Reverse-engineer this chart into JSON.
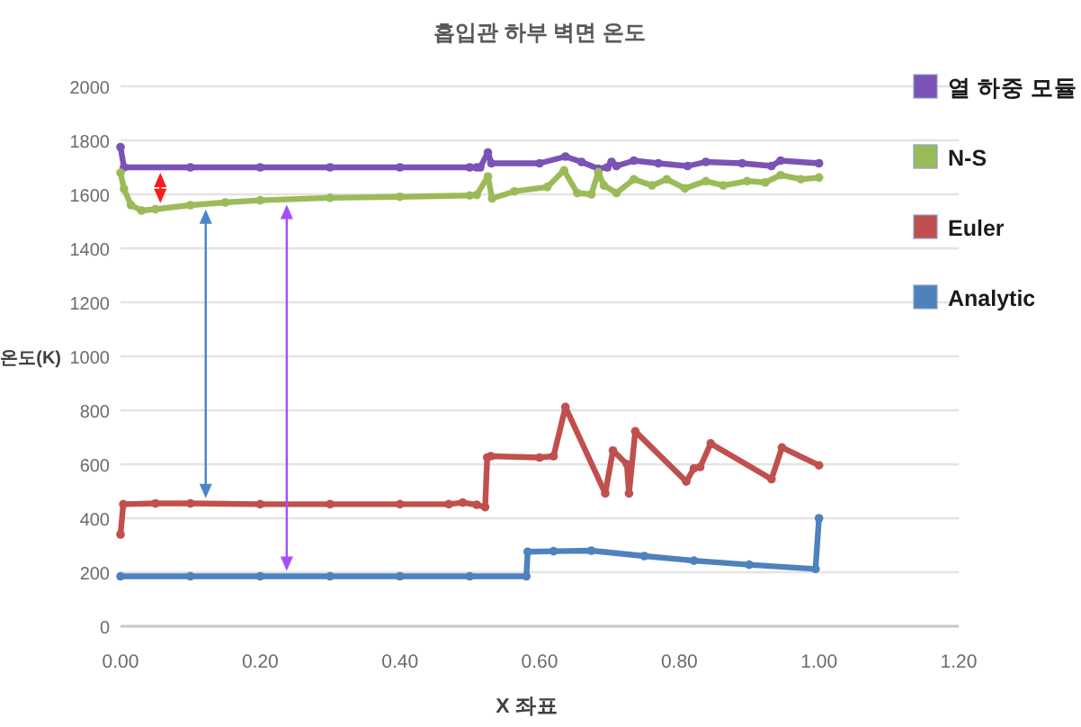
{
  "chart_data": {
    "type": "line",
    "title": "흡입관 하부 벽면 온도",
    "xlabel": "X 좌표",
    "ylabel": "온도(K)",
    "xlim": [
      0,
      1.2
    ],
    "xticks": [
      {
        "value": 0,
        "label": "0.00"
      },
      {
        "value": 0.2,
        "label": "0.20"
      },
      {
        "value": 0.4,
        "label": "0.40"
      },
      {
        "value": 0.6,
        "label": "0.60"
      },
      {
        "value": 0.8,
        "label": "0.80"
      },
      {
        "value": 1.0,
        "label": "1.00"
      },
      {
        "value": 1.2,
        "label": "1.20"
      }
    ],
    "ylim": [
      0,
      2000
    ],
    "yticks": [
      0,
      200,
      400,
      600,
      800,
      1000,
      1200,
      1400,
      1600,
      1800,
      2000
    ],
    "grid": "y",
    "legend": "right",
    "marker": "circle",
    "series": [
      {
        "name": "열 하중 모듈",
        "color": "#7b52b5",
        "x": [
          0,
          0.005,
          0.1,
          0.2,
          0.3,
          0.4,
          0.5,
          0.51,
          0.515,
          0.526,
          0.531,
          0.6,
          0.637,
          0.66,
          0.684,
          0.697,
          0.703,
          0.71,
          0.735,
          0.77,
          0.812,
          0.838,
          0.89,
          0.932,
          0.945,
          1.0
        ],
        "values": [
          1775,
          1700,
          1700,
          1700,
          1700,
          1700,
          1700,
          1700,
          1700,
          1755,
          1715,
          1715,
          1740,
          1720,
          1695,
          1700,
          1720,
          1705,
          1725,
          1715,
          1705,
          1720,
          1715,
          1705,
          1725,
          1715
        ]
      },
      {
        "name": "N-S",
        "color": "#9bbb59",
        "x": [
          0,
          0.005,
          0.015,
          0.03,
          0.05,
          0.1,
          0.15,
          0.2,
          0.3,
          0.4,
          0.5,
          0.51,
          0.526,
          0.532,
          0.564,
          0.611,
          0.635,
          0.654,
          0.674,
          0.684,
          0.692,
          0.71,
          0.735,
          0.761,
          0.782,
          0.808,
          0.838,
          0.863,
          0.897,
          0.923,
          0.945,
          0.974,
          1.0
        ],
        "values": [
          1680,
          1620,
          1560,
          1540,
          1545,
          1560,
          1570,
          1578,
          1587,
          1591,
          1596,
          1598,
          1666,
          1585,
          1611,
          1627,
          1689,
          1605,
          1600,
          1682,
          1633,
          1605,
          1656,
          1633,
          1656,
          1622,
          1649,
          1633,
          1649,
          1644,
          1671,
          1656,
          1662
        ]
      },
      {
        "name": "Euler",
        "color": "#c0504d",
        "x": [
          0,
          0.004,
          0.05,
          0.1,
          0.2,
          0.3,
          0.4,
          0.47,
          0.49,
          0.51,
          0.522,
          0.525,
          0.53,
          0.6,
          0.62,
          0.637,
          0.694,
          0.705,
          0.725,
          0.728,
          0.737,
          0.81,
          0.821,
          0.83,
          0.845,
          0.932,
          0.947,
          1.0
        ],
        "values": [
          340,
          452,
          455,
          455,
          452,
          452,
          452,
          452,
          458,
          450,
          441,
          625,
          630,
          625,
          630,
          812,
          492,
          651,
          600,
          492,
          722,
          536,
          585,
          590,
          677,
          545,
          662,
          596
        ]
      },
      {
        "name": "Analytic",
        "color": "#4f81bd",
        "x": [
          0,
          0.1,
          0.2,
          0.3,
          0.4,
          0.5,
          0.581,
          0.583,
          0.62,
          0.674,
          0.75,
          0.821,
          0.9,
          0.995,
          1.0
        ],
        "values": [
          185,
          185,
          185,
          185,
          185,
          185,
          185,
          276,
          278,
          280,
          260,
          243,
          228,
          212,
          400
        ]
      }
    ]
  }
}
